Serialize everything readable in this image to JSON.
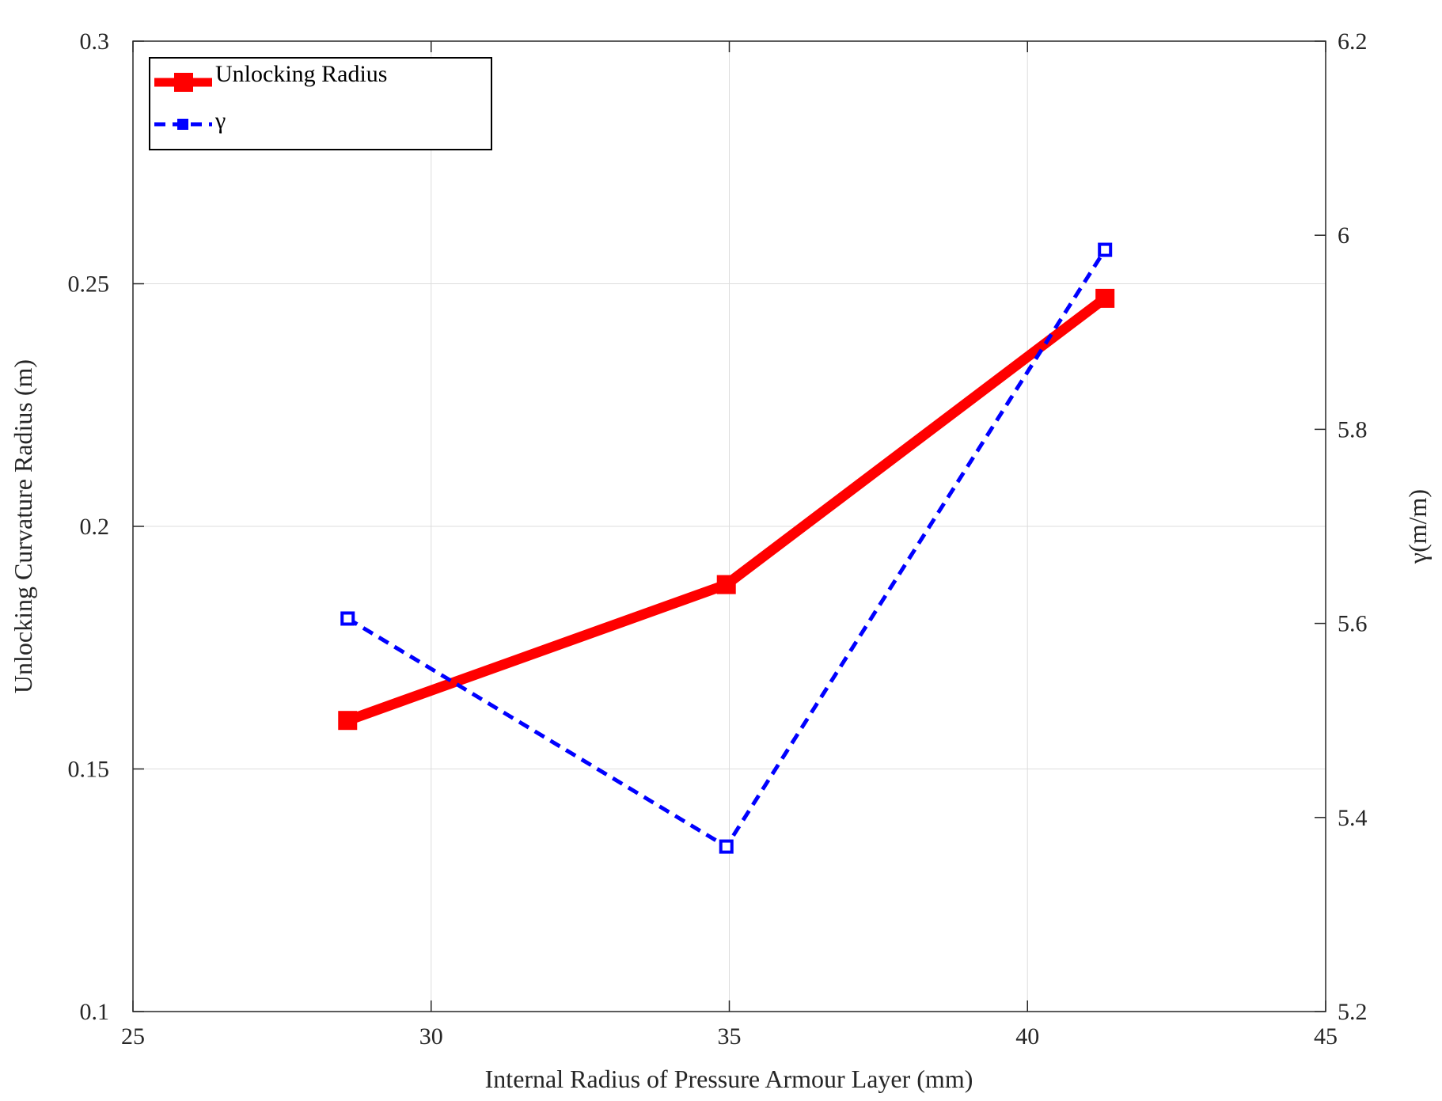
{
  "chart_data": {
    "type": "line",
    "xlabel": "Internal Radius of Pressure Armour Layer (mm)",
    "ylabel_left": "Unlocking Curvature Radius (m)",
    "ylabel_right": "γ(m/m)",
    "xlim": [
      25,
      45
    ],
    "ylim_left": [
      0.1,
      0.3
    ],
    "ylim_right": [
      5.2,
      6.2
    ],
    "x_ticks": [
      "25",
      "30",
      "35",
      "40",
      "45"
    ],
    "y_left_ticks": [
      "0.1",
      "0.15",
      "0.2",
      "0.25",
      "0.3"
    ],
    "y_right_ticks": [
      "5.2",
      "5.4",
      "5.6",
      "5.8",
      "6",
      "6.2"
    ],
    "grid": true,
    "legend_position": "top-left",
    "series": [
      {
        "name": "Unlocking Radius",
        "axis": "left",
        "color": "#ff0000",
        "line_style": "solid",
        "marker": "square",
        "x": [
          28.6,
          34.95,
          41.3
        ],
        "values": [
          0.16,
          0.188,
          0.247
        ]
      },
      {
        "name": "γ",
        "axis": "right",
        "color": "#0000ff",
        "line_style": "dashed",
        "marker": "square",
        "x": [
          28.6,
          34.95,
          41.3
        ],
        "values": [
          5.605,
          5.37,
          5.985
        ]
      }
    ]
  }
}
